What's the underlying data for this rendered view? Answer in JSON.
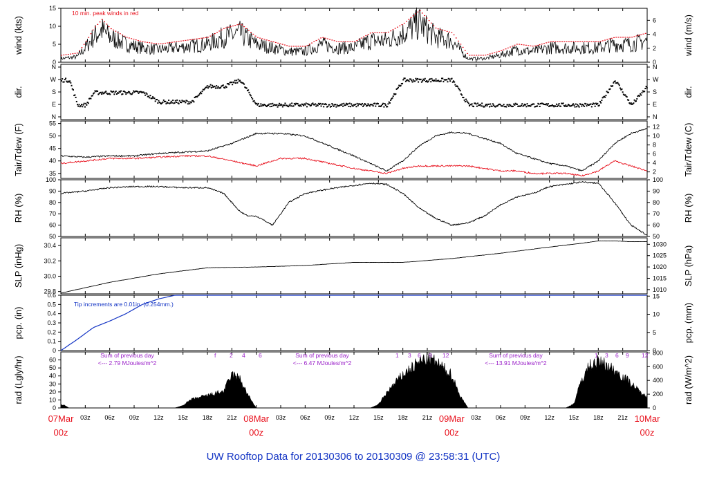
{
  "footer_text": "UW Rooftop Data for 20130306  to  20130309 @ 23:58:31  (UTC)",
  "colors": {
    "peak": "#e8111d",
    "dew": "#e8111d",
    "date": "#e8111d",
    "pcp": "#1233c4",
    "radnote": "#9a20c8",
    "footer": "#1233c4",
    "line": "#000000"
  },
  "chart_data": [
    {
      "type": "line",
      "name": "wind",
      "ylabel": "wind (kts)",
      "ylabel_right": "wind (m/s)",
      "ylim": [
        0,
        15
      ],
      "yticks": [
        "0",
        "5",
        "10",
        "15"
      ],
      "yticks_right": [
        "0",
        "2",
        "4",
        "6"
      ],
      "annotation": "10 min. peak winds in red",
      "series": [
        {
          "x_hours": [
            0,
            2,
            3,
            4,
            5,
            6,
            8,
            10,
            12,
            14,
            16,
            18,
            20,
            22,
            24,
            26,
            28,
            30,
            32,
            34,
            36,
            38,
            40,
            42,
            44,
            46,
            48,
            50,
            52,
            54,
            56,
            58,
            60,
            62,
            64,
            66,
            68,
            70,
            72
          ],
          "values": [
            1,
            1.5,
            4,
            7,
            9,
            7,
            5,
            4,
            3.5,
            4,
            4.5,
            5,
            7,
            8,
            5,
            4,
            3,
            3,
            5,
            4,
            4,
            6,
            6,
            8,
            11,
            7,
            6,
            1,
            1,
            2,
            3.5,
            3,
            4,
            4,
            4,
            4,
            5,
            5,
            6
          ]
        }
      ]
    },
    {
      "type": "scatter",
      "name": "direction",
      "ylabel": "dir.",
      "ylabel_right": "dir.",
      "yticks": [
        "N",
        "E",
        "S",
        "W",
        "N"
      ],
      "series": [
        {
          "x_hours": [
            0,
            1,
            2,
            3,
            4,
            6,
            8,
            10,
            12,
            14,
            16,
            18,
            20,
            22,
            24,
            26,
            28,
            30,
            32,
            34,
            36,
            38,
            40,
            42,
            44,
            46,
            48,
            50,
            52,
            54,
            56,
            58,
            60,
            62,
            64,
            66,
            68,
            70,
            72
          ],
          "values": [
            "W",
            "W",
            "E",
            "E",
            "S",
            "S",
            "S",
            "S",
            "SE",
            "SE",
            "SE",
            "SW",
            "SW",
            "W",
            "E",
            "E",
            "E",
            "E",
            "E",
            "E",
            "E",
            "E",
            "E",
            "W",
            "W",
            "W",
            "W",
            "E",
            "E",
            "E",
            "E",
            "E",
            "E",
            "E",
            "E",
            "E",
            "W",
            "E",
            "SW"
          ]
        }
      ]
    },
    {
      "type": "line",
      "name": "temperature",
      "ylabel": "Tair/Tdew (F)",
      "ylabel_right": "Tair/Tdew (C)",
      "ylim": [
        33,
        56
      ],
      "yticks": [
        "35",
        "40",
        "45",
        "50",
        "55"
      ],
      "yticks_right": [
        "2",
        "4",
        "6",
        "8",
        "10",
        "12"
      ],
      "series": [
        {
          "name": "",
          "x_hours": [
            0,
            3,
            6,
            9,
            12,
            15,
            18,
            21,
            24,
            27,
            30,
            33,
            36,
            38,
            40,
            42,
            44,
            46,
            48,
            50,
            52,
            54,
            56,
            58,
            60,
            62,
            64,
            66,
            68,
            70,
            72
          ],
          "values": [
            42,
            41.5,
            42,
            42,
            43,
            43.5,
            44,
            47,
            51,
            51,
            50,
            46,
            42,
            39,
            36,
            40,
            46,
            50,
            51.5,
            51,
            49,
            47,
            43,
            41,
            39,
            38,
            36,
            40,
            47,
            51,
            53
          ]
        },
        {
          "name": "",
          "x_hours": [
            0,
            3,
            6,
            9,
            12,
            15,
            18,
            21,
            24,
            27,
            30,
            33,
            36,
            38,
            40,
            42,
            44,
            46,
            48,
            50,
            52,
            54,
            56,
            58,
            60,
            62,
            64,
            66,
            68,
            70,
            72
          ],
          "values": [
            39,
            40,
            41,
            41,
            41.5,
            42,
            42,
            40,
            38,
            41,
            41,
            39,
            37,
            36,
            35,
            37,
            38,
            38,
            38,
            38,
            37,
            36,
            36,
            35,
            35,
            35,
            34,
            36,
            40,
            38,
            36
          ]
        }
      ]
    },
    {
      "type": "line",
      "name": "relative-humidity",
      "ylabel": "RH (%)",
      "ylabel_right": "RH (%)",
      "ylim": [
        50,
        100
      ],
      "yticks": [
        "50",
        "60",
        "70",
        "80",
        "90",
        "100"
      ],
      "series": [
        {
          "x_hours": [
            0,
            3,
            6,
            9,
            12,
            15,
            18,
            20,
            21,
            22,
            23,
            24,
            26,
            28,
            30,
            33,
            36,
            38,
            40,
            42,
            44,
            46,
            48,
            50,
            52,
            54,
            56,
            58,
            60,
            62,
            64,
            66,
            68,
            70,
            72
          ],
          "values": [
            88,
            90,
            93,
            94,
            94,
            93,
            93,
            88,
            80,
            72,
            68,
            68,
            60,
            80,
            88,
            92,
            95,
            97,
            96,
            88,
            75,
            66,
            60,
            62,
            68,
            78,
            85,
            88,
            94,
            96,
            98,
            97,
            80,
            60,
            51
          ]
        }
      ]
    },
    {
      "type": "line",
      "name": "sea-level-pressure",
      "ylabel": "SLP (inHg)",
      "ylabel_right": "SLP (hPa)",
      "ylim": [
        29.77,
        30.5
      ],
      "yticks": [
        "29.8",
        "30.0",
        "30.2",
        "30.4"
      ],
      "yticks_right": [
        "1010",
        "1015",
        "1020",
        "1025",
        "1030"
      ],
      "series": [
        {
          "x_hours": [
            0,
            6,
            12,
            18,
            24,
            30,
            36,
            42,
            48,
            54,
            60,
            64,
            66,
            68,
            70,
            72
          ],
          "values": [
            29.78,
            29.92,
            30.03,
            30.11,
            30.12,
            30.14,
            30.18,
            30.18,
            30.23,
            30.3,
            30.38,
            30.43,
            30.46,
            30.46,
            30.45,
            30.45
          ]
        }
      ]
    },
    {
      "type": "area",
      "name": "precipitation",
      "ylabel": "pcp. (in)",
      "ylabel_right": "pcp. (mm)",
      "ylim": [
        0,
        0.6
      ],
      "yticks": [
        "0",
        "0.1",
        "0.2",
        "0.3",
        "0.4",
        "0.5",
        "0.6"
      ],
      "yticks_right": [
        "0",
        "5",
        "10",
        "15"
      ],
      "annotation": "Tip increments are 0.01in. (0.254mm.)",
      "series": [
        {
          "x_hours": [
            0,
            2,
            4,
            6,
            8,
            10,
            12,
            14,
            18,
            24,
            72
          ],
          "values": [
            0,
            0.12,
            0.25,
            0.32,
            0.4,
            0.5,
            0.56,
            0.6,
            0.6,
            0.6,
            0.6
          ]
        }
      ]
    },
    {
      "type": "area",
      "name": "solar-radiation",
      "ylabel": "rad (Lgly/hr)",
      "ylabel_right": "rad (W/m^2)",
      "ylim": [
        0,
        70
      ],
      "yticks": [
        "0",
        "10",
        "20",
        "30",
        "40",
        "50",
        "60"
      ],
      "yticks_right": [
        "0",
        "200",
        "400",
        "600",
        "800"
      ],
      "annotations": [
        {
          "sum_title": "Sum of previous day",
          "sum_value": "<--- 2.79 MJoules/m^2"
        },
        {
          "sum_title": "Sum of previous day",
          "sum_value": "<--- 6.47 MJoules/m^2"
        },
        {
          "sum_title": "Sum of previous day",
          "sum_value": "<--- 13.91 MJoules/m^2"
        }
      ],
      "hour_marks": [
        [
          "f",
          "2",
          "4",
          "6"
        ],
        [
          "1",
          "3",
          "6",
          "9",
          "12"
        ],
        [
          "1",
          "3",
          "6",
          "9",
          "12"
        ]
      ],
      "series": [
        {
          "x_hours": [
            0,
            0.5,
            1,
            14,
            15,
            16,
            18,
            20,
            21,
            22,
            23,
            24,
            38,
            39,
            40,
            42,
            44,
            45,
            46,
            48,
            49,
            50,
            62,
            63,
            64,
            65,
            66,
            67,
            68,
            69,
            70,
            71,
            72
          ],
          "values": [
            4,
            3,
            0,
            0,
            3,
            10,
            15,
            20,
            40,
            35,
            15,
            0,
            0,
            4,
            18,
            40,
            55,
            60,
            55,
            40,
            15,
            0,
            0,
            5,
            35,
            52,
            55,
            52,
            45,
            38,
            30,
            20,
            12
          ]
        }
      ]
    }
  ],
  "x_axis": {
    "ticks": [
      "03z",
      "06z",
      "09z",
      "12z",
      "15z",
      "18z",
      "21z",
      "",
      "03z",
      "06z",
      "09z",
      "12z",
      "15z",
      "18z",
      "21z",
      "",
      "03z",
      "06z",
      "09z",
      "12z",
      "15z",
      "18z",
      "21z"
    ],
    "date_labels": [
      {
        "date": "07Mar",
        "time": "00z"
      },
      {
        "date": "08Mar",
        "time": "00z"
      },
      {
        "date": "09Mar",
        "time": "00z"
      },
      {
        "date": "10Mar",
        "time": "00z"
      }
    ]
  }
}
